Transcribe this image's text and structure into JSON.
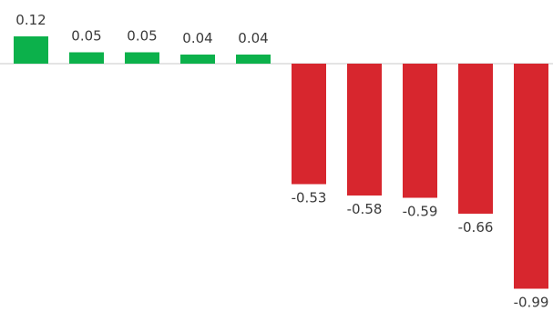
{
  "chart_data": {
    "type": "bar",
    "categories": [
      "",
      "",
      "",
      "",
      "",
      "",
      "",
      "",
      "",
      ""
    ],
    "values": [
      0.12,
      0.05,
      0.05,
      0.04,
      0.04,
      -0.53,
      -0.58,
      -0.59,
      -0.66,
      -0.99
    ],
    "labels": [
      "0.12",
      "0.05",
      "0.05",
      "0.04",
      "0.04",
      "-0.53",
      "-0.58",
      "-0.59",
      "-0.66",
      "-0.99"
    ],
    "title": "",
    "xlabel": "",
    "ylabel": "",
    "ylim": [
      -1.0,
      0.15
    ],
    "grid": false,
    "legend": "none",
    "colors": {
      "positive": "#0cb14b",
      "negative": "#d7262e",
      "axis": "#c8c8c8"
    }
  }
}
